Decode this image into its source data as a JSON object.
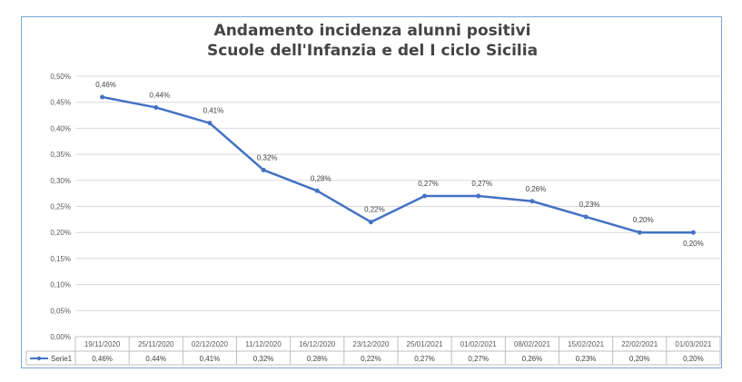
{
  "chart_data": {
    "type": "line",
    "title_lines": [
      "Andamento incidenza alunni positivi",
      "Scuole dell'Infanzia e del I ciclo Sicilia"
    ],
    "categories": [
      "19/11/2020",
      "25/11/2020",
      "02/12/2020",
      "11/12/2020",
      "16/12/2020",
      "23/12/2020",
      "25/01/2021",
      "01/02/2021",
      "08/02/2021",
      "15/02/2021",
      "22/02/2021",
      "01/03/2021"
    ],
    "series": [
      {
        "name": "Serie1",
        "values": [
          0.46,
          0.44,
          0.41,
          0.32,
          0.28,
          0.22,
          0.27,
          0.27,
          0.26,
          0.23,
          0.2,
          0.2
        ],
        "labels": [
          "0,46%",
          "0,44%",
          "0,41%",
          "0,32%",
          "0,28%",
          "0,22%",
          "0,27%",
          "0,27%",
          "0,26%",
          "0,23%",
          "0,20%",
          "0,20%"
        ],
        "color": "#4472c4"
      }
    ],
    "y_ticks": [
      "0,00%",
      "0,05%",
      "0,10%",
      "0,15%",
      "0,20%",
      "0,25%",
      "0,30%",
      "0,35%",
      "0,40%",
      "0,45%",
      "0,50%"
    ],
    "ylim": [
      0,
      0.5
    ],
    "ylabel": "",
    "xlabel": "",
    "grid": true,
    "data_table": true,
    "legend": "data-table-left"
  }
}
